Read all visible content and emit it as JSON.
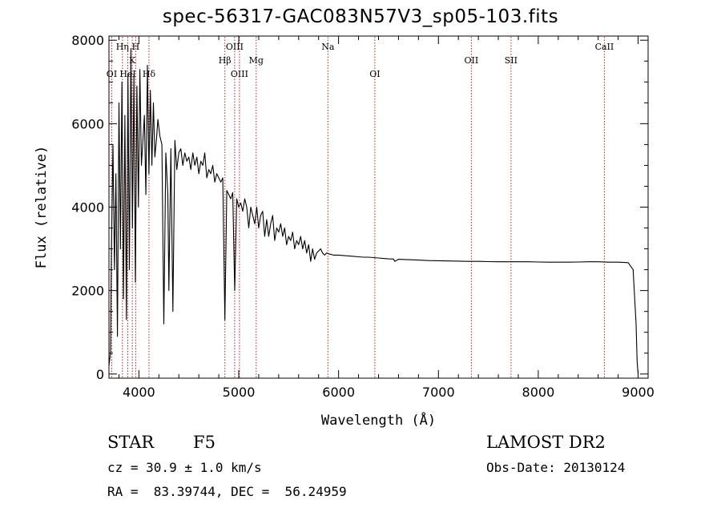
{
  "title": "spec-56317-GAC083N57V3_sp05-103.fits",
  "info": {
    "class_label": "STAR",
    "subclass": "F5",
    "survey": "LAMOST DR2",
    "cz": "cz = 30.9 ± 1.0 km/s",
    "obs_date": "Obs-Date: 20130124",
    "coords": "RA =  83.39744, DEC =  56.24959"
  },
  "colors": {
    "line": "#000000",
    "marker": "#b22222",
    "axis": "#000000"
  },
  "chart_data": {
    "type": "line",
    "title": "spec-56317-GAC083N57V3_sp05-103.fits",
    "xlabel": "Wavelength (Å)",
    "ylabel": "Flux (relative)",
    "xlim": [
      3700,
      9100
    ],
    "ylim": [
      -100,
      8100
    ],
    "xticks": [
      4000,
      5000,
      6000,
      7000,
      8000,
      9000
    ],
    "yticks": [
      0,
      2000,
      4000,
      6000,
      8000
    ],
    "grid": false,
    "series": [
      {
        "x": [
          3700,
          3715,
          3725,
          3740,
          3755,
          3770,
          3785,
          3800,
          3815,
          3830,
          3845,
          3860,
          3875,
          3890,
          3905,
          3920,
          3935,
          3950,
          3965,
          3980,
          3995,
          4010,
          4025,
          4040,
          4055,
          4070,
          4085,
          4100,
          4115,
          4130,
          4145,
          4160,
          4175,
          4190,
          4210,
          4230,
          4250,
          4270,
          4290,
          4300,
          4320,
          4340,
          4360,
          4380,
          4400,
          4420,
          4440,
          4460,
          4480,
          4500,
          4520,
          4540,
          4560,
          4580,
          4600,
          4620,
          4640,
          4660,
          4680,
          4700,
          4720,
          4740,
          4760,
          4780,
          4800,
          4820,
          4840,
          4861,
          4880,
          4900,
          4920,
          4940,
          4960,
          4980,
          5000,
          5020,
          5040,
          5060,
          5080,
          5100,
          5120,
          5140,
          5160,
          5180,
          5200,
          5220,
          5240,
          5260,
          5280,
          5300,
          5320,
          5340,
          5360,
          5380,
          5400,
          5420,
          5440,
          5460,
          5480,
          5500,
          5520,
          5540,
          5560,
          5580,
          5600,
          5620,
          5640,
          5660,
          5680,
          5700,
          5720,
          5740,
          5760,
          5780,
          5800,
          5820,
          5840,
          5860,
          5880,
          5900,
          5950,
          6000,
          6050,
          6100,
          6150,
          6200,
          6250,
          6300,
          6350,
          6400,
          6450,
          6500,
          6550,
          6563,
          6600,
          6700,
          6800,
          6900,
          7000,
          7100,
          7200,
          7300,
          7400,
          7500,
          7600,
          7700,
          7800,
          7900,
          8000,
          8100,
          8200,
          8300,
          8400,
          8500,
          8600,
          8700,
          8800,
          8900,
          8950,
          8980,
          8990,
          9000
        ],
        "y": [
          200,
          500,
          3000,
          5500,
          2500,
          4800,
          900,
          6500,
          3000,
          7000,
          1800,
          6200,
          1300,
          7200,
          2500,
          7800,
          3500,
          7200,
          2200,
          6900,
          4000,
          7300,
          5000,
          5600,
          6200,
          4300,
          7400,
          4800,
          6800,
          5000,
          6500,
          5200,
          5600,
          6100,
          5700,
          5500,
          1200,
          5300,
          4300,
          2000,
          5400,
          1500,
          5600,
          4900,
          5300,
          5400,
          5000,
          5300,
          5100,
          5200,
          4900,
          5300,
          5000,
          5200,
          4800,
          5100,
          5000,
          5300,
          4700,
          4900,
          4800,
          5000,
          4600,
          4800,
          4700,
          4600,
          4700,
          1300,
          4400,
          4300,
          4200,
          4350,
          2000,
          4200,
          4000,
          4100,
          3900,
          4200,
          4000,
          3500,
          4000,
          3800,
          3600,
          4000,
          3500,
          3800,
          3900,
          3300,
          3700,
          3300,
          3600,
          3800,
          3200,
          3500,
          3400,
          3600,
          3300,
          3500,
          3100,
          3300,
          3200,
          3400,
          3000,
          3200,
          3100,
          3300,
          3000,
          3200,
          2900,
          3100,
          2700,
          3000,
          2750,
          2900,
          2950,
          3000,
          2900,
          2850,
          2900,
          2880,
          2850,
          2850,
          2840,
          2830,
          2820,
          2810,
          2800,
          2800,
          2790,
          2780,
          2770,
          2760,
          2755,
          2700,
          2750,
          2740,
          2730,
          2720,
          2715,
          2710,
          2705,
          2700,
          2700,
          2695,
          2690,
          2690,
          2690,
          2690,
          2685,
          2680,
          2680,
          2680,
          2685,
          2690,
          2690,
          2680,
          2680,
          2670,
          2500,
          1200,
          300,
          0
        ]
      }
    ],
    "lines": [
      {
        "label": "OI",
        "x": 3728,
        "tier": 3
      },
      {
        "label": "Hη",
        "x": 3835,
        "tier": 1
      },
      {
        "label": "HeI",
        "x": 3889,
        "tier": 3
      },
      {
        "label": "K",
        "x": 3934,
        "tier": 2
      },
      {
        "label": "H",
        "x": 3968,
        "tier": 1
      },
      {
        "label": "Hδ",
        "x": 4101,
        "tier": 3
      },
      {
        "label": "Hβ",
        "x": 4861,
        "tier": 2
      },
      {
        "label": "OIII",
        "x": 4959,
        "tier": 1
      },
      {
        "label": "OIII",
        "x": 5007,
        "tier": 3
      },
      {
        "label": "Mg",
        "x": 5175,
        "tier": 2
      },
      {
        "label": "Na",
        "x": 5893,
        "tier": 1
      },
      {
        "label": "OI",
        "x": 6363,
        "tier": 3
      },
      {
        "label": "OII",
        "x": 7330,
        "tier": 2
      },
      {
        "label": "SII",
        "x": 7727,
        "tier": 2
      },
      {
        "label": "CaII",
        "x": 8662,
        "tier": 1
      }
    ]
  }
}
